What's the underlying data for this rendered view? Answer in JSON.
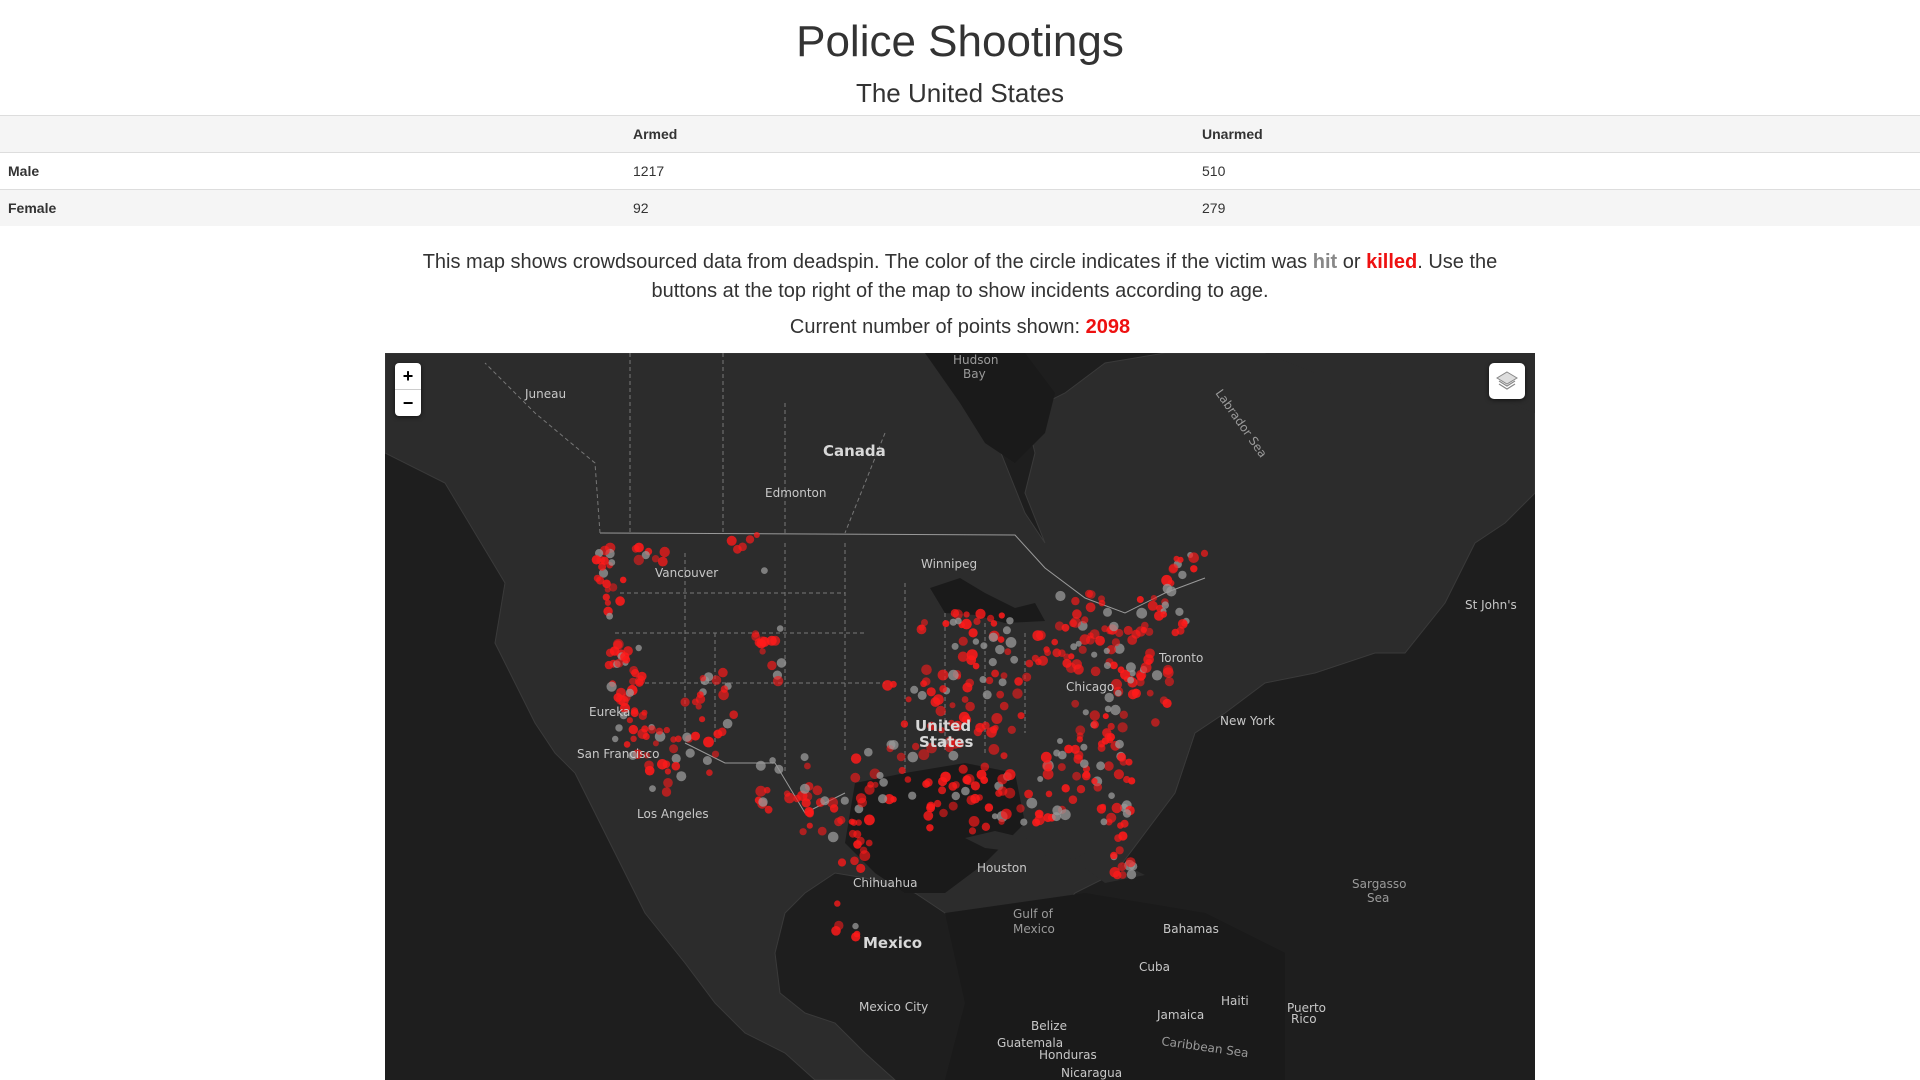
{
  "header": {
    "title": "Police Shootings",
    "subtitle": "The United States"
  },
  "stats_table": {
    "columns": [
      "",
      "Armed",
      "Unarmed"
    ],
    "rows": [
      {
        "label": "Male",
        "armed": "1217",
        "unarmed": "510"
      },
      {
        "label": "Female",
        "armed": "92",
        "unarmed": "279"
      }
    ]
  },
  "description": {
    "part1": "This map shows crowdsourced data from deadspin. The color of the circle indicates if the victim was ",
    "hit_word": "hit",
    "or_word": " or ",
    "killed_word": "killed",
    "part2": ". Use the buttons at the top right of the map to show incidents according to age."
  },
  "points_count": {
    "label": "Current number of points shown: ",
    "value": "2098"
  },
  "map": {
    "zoom_in_label": "+",
    "zoom_out_label": "−",
    "layers_icon": "layers-icon",
    "colors": {
      "killed": "#ff1a1a",
      "hit": "#9a9a9a",
      "land": "#2b2b2b",
      "water": "#161616"
    },
    "place_labels": {
      "hudson_bay": [
        "Hudson",
        "Bay"
      ],
      "labrador_sea": "Labrador Sea",
      "juneau": "Juneau",
      "canada": "Canada",
      "edmonton": "Edmonton",
      "winnipeg": "Winnipeg",
      "vancouver": "Vancouver",
      "st_johns": "St John's",
      "toronto": "Toronto",
      "chicago": "Chicago",
      "eureka": "Eureka",
      "united_states": [
        "United",
        "States"
      ],
      "new_york": "New York",
      "san_francisco": "San Francisco",
      "los_angeles": "Los Angeles",
      "houston": "Houston",
      "chihuahua": "Chihuahua",
      "gulf_of_mexico": [
        "Gulf of",
        "Mexico"
      ],
      "sargasso_sea": [
        "Sargasso",
        "Sea"
      ],
      "bahamas": "Bahamas",
      "mexico": "Mexico",
      "cuba": "Cuba",
      "haiti": "Haiti",
      "puerto_rico": [
        "Puerto",
        "Rico"
      ],
      "mexico_city": "Mexico City",
      "jamaica": "Jamaica",
      "belize": "Belize",
      "guatemala": "Guatemala",
      "honduras": "Honduras",
      "caribbean_sea": "Caribbean Sea",
      "nicaragua": "Nicaragua"
    }
  }
}
